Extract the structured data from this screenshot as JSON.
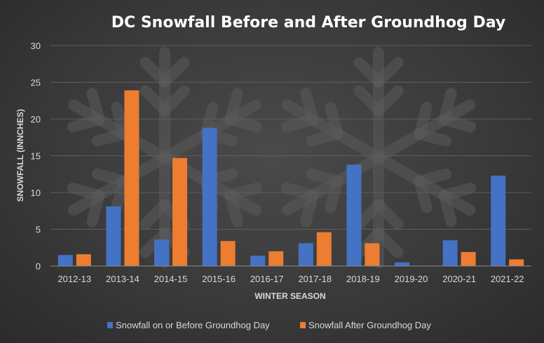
{
  "chart_data": {
    "type": "bar",
    "title": "DC Snowfall Before and After Groundhog Day",
    "xlabel": "WINTER SEASON",
    "ylabel": "SNOWFALL (INNCHES)",
    "ylim": [
      0,
      30
    ],
    "yticks": [
      0,
      5,
      10,
      15,
      20,
      25,
      30
    ],
    "grid": true,
    "legend_position": "bottom",
    "categories": [
      "2012-13",
      "2013-14",
      "2014-15",
      "2015-16",
      "2016-17",
      "2017-18",
      "2018-19",
      "2019-20",
      "2020-21",
      "2021-22"
    ],
    "series": [
      {
        "name": "Snowfall on or Before Groundhog Day",
        "color": "#4472c4",
        "values": [
          1.5,
          8.1,
          3.6,
          18.8,
          1.4,
          3.1,
          13.8,
          0.5,
          3.5,
          12.3
        ]
      },
      {
        "name": "Snowfall After Groundhog Day",
        "color": "#ed7d31",
        "values": [
          1.6,
          23.9,
          14.7,
          3.4,
          2.0,
          4.6,
          3.1,
          0.0,
          1.9,
          0.9
        ]
      }
    ]
  }
}
